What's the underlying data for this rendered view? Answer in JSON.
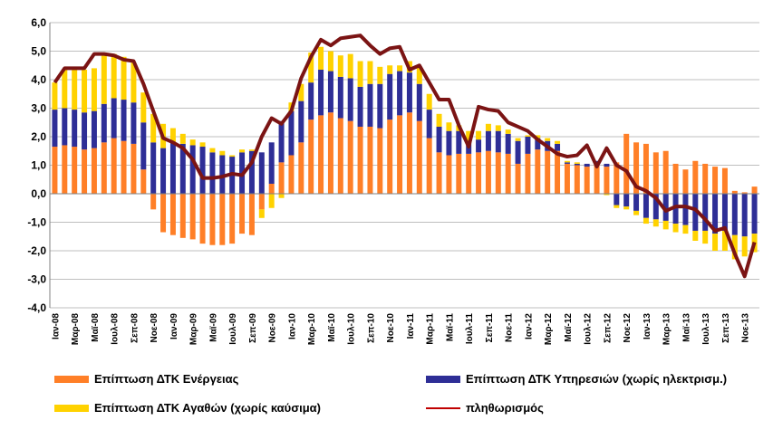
{
  "chart_data": {
    "type": "bar",
    "stacked": true,
    "ylim": [
      -4,
      6
    ],
    "yticks": [
      "6,0",
      "5,0",
      "4,0",
      "3,0",
      "2,0",
      "1,0",
      "0,0",
      "-1,0",
      "-2,0",
      "-3,0",
      "-4,0"
    ],
    "grid": true,
    "legend_position": "bottom",
    "x_labels": [
      "Ιαν-08",
      "Μαρ-08",
      "Μαϊ-08",
      "Ιουλ-08",
      "Σεπ-08",
      "Νοε-08",
      "Ιαν-09",
      "Μαρ-09",
      "Μαϊ-09",
      "Ιουλ-09",
      "Σεπ-09",
      "Νοε-09",
      "Ιαν-10",
      "Μαρ-10",
      "Μαϊ-10",
      "Ιουλ-10",
      "Σεπ-10",
      "Νοε-10",
      "Ιαν-11",
      "Μαρ-11",
      "Μαϊ-11",
      "Ιουλ-11",
      "Σεπ-11",
      "Νοε-11",
      "Ιαν-12",
      "Μαρ-12",
      "Μαϊ-12",
      "Ιουλ-12",
      "Σεπ-12",
      "Νοε-12",
      "Ιαν-13",
      "Μαρ-13",
      "Μαϊ-13",
      "Ιουλ-13",
      "Σεπ-13",
      "Νοε-13"
    ],
    "series": [
      {
        "name": "Επίπτωση ΔΤΚ Ενέργειας",
        "color": "#FF7F27",
        "kind": "bar",
        "values": [
          1.65,
          1.7,
          1.65,
          1.55,
          1.6,
          1.8,
          1.95,
          1.85,
          1.75,
          0.85,
          -0.55,
          -1.35,
          -1.45,
          -1.55,
          -1.6,
          -1.75,
          -1.8,
          -1.8,
          -1.75,
          -1.4,
          -1.45,
          -0.55,
          0.35,
          1.1,
          1.35,
          1.8,
          2.6,
          2.75,
          2.85,
          2.65,
          2.55,
          2.35,
          2.35,
          2.3,
          2.6,
          2.75,
          2.85,
          2.55,
          1.95,
          1.45,
          1.35,
          1.4,
          1.4,
          1.45,
          1.5,
          1.45,
          1.4,
          1.05,
          1.4,
          1.55,
          1.5,
          1.5,
          1.05,
          1.0,
          0.95,
          1.05,
          0.95,
          1.1,
          2.1,
          1.8,
          1.75,
          1.45,
          1.5,
          1.05,
          0.85,
          1.15,
          1.05,
          0.95,
          0.9,
          0.1,
          0.05,
          0.25
        ]
      },
      {
        "name": "Επίπτωση ΔΤΚ Υπηρεσιών (χωρίς ηλεκτρισμ.)",
        "color": "#2E2E96",
        "kind": "bar",
        "values": [
          1.3,
          1.3,
          1.3,
          1.3,
          1.3,
          1.35,
          1.4,
          1.45,
          1.45,
          1.65,
          1.8,
          1.6,
          1.8,
          1.75,
          1.7,
          1.65,
          1.45,
          1.35,
          1.3,
          1.45,
          1.5,
          1.45,
          1.45,
          1.45,
          1.55,
          1.45,
          1.3,
          1.6,
          1.45,
          1.45,
          1.5,
          1.4,
          1.5,
          1.55,
          1.6,
          1.55,
          1.4,
          1.3,
          1.0,
          0.9,
          0.85,
          0.8,
          0.45,
          0.45,
          0.7,
          0.75,
          0.7,
          0.8,
          0.6,
          0.4,
          0.35,
          0.25,
          0.05,
          0.05,
          0.1,
          0.1,
          0.1,
          -0.4,
          -0.45,
          -0.6,
          -0.85,
          -0.9,
          -0.95,
          -1.05,
          -1.1,
          -1.3,
          -1.3,
          -1.4,
          -1.3,
          -1.45,
          -1.5,
          -1.4
        ]
      },
      {
        "name": "Επίπτωση ΔΤΚ Αγαθών (χωρίς καύσιμα)",
        "color": "#FFD200",
        "kind": "bar",
        "values": [
          0.95,
          1.35,
          1.4,
          1.5,
          1.5,
          1.75,
          1.55,
          1.5,
          1.4,
          1.05,
          1.0,
          0.85,
          0.5,
          0.35,
          0.2,
          0.15,
          0.15,
          0.15,
          0.05,
          0.1,
          0.05,
          -0.3,
          -0.5,
          -0.15,
          0.3,
          0.6,
          1.05,
          0.8,
          0.7,
          0.75,
          0.85,
          0.9,
          0.8,
          0.6,
          0.3,
          0.2,
          0.4,
          0.6,
          0.55,
          0.45,
          0.3,
          0.2,
          0.35,
          0.3,
          0.25,
          0.2,
          0.15,
          0.1,
          0.05,
          0.1,
          0.1,
          0.1,
          0.05,
          0.05,
          0.0,
          0.0,
          -0.05,
          -0.1,
          -0.1,
          -0.15,
          -0.2,
          -0.25,
          -0.3,
          -0.3,
          -0.3,
          -0.35,
          -0.45,
          -0.6,
          -0.7,
          -0.85,
          -0.7,
          -0.65
        ]
      },
      {
        "name": "πληθωρισμός",
        "color": "#7B1414",
        "kind": "line",
        "values": [
          3.9,
          4.4,
          4.4,
          4.4,
          4.9,
          4.9,
          4.85,
          4.7,
          4.65,
          3.85,
          2.9,
          1.95,
          1.8,
          1.6,
          1.2,
          0.55,
          0.55,
          0.6,
          0.7,
          0.65,
          1.1,
          2.0,
          2.65,
          2.45,
          2.9,
          4.05,
          4.8,
          5.4,
          5.2,
          5.45,
          5.5,
          5.55,
          5.2,
          4.9,
          5.1,
          5.15,
          4.35,
          4.5,
          3.9,
          3.3,
          3.3,
          2.4,
          1.65,
          3.05,
          2.95,
          2.9,
          2.5,
          2.35,
          2.2,
          1.9,
          1.65,
          1.4,
          1.3,
          1.35,
          1.7,
          0.95,
          1.6,
          1.0,
          0.8,
          0.25,
          0.1,
          -0.15,
          -0.6,
          -0.45,
          -0.45,
          -0.55,
          -0.9,
          -1.3,
          -1.2,
          -2.1,
          -2.9,
          -1.7
        ]
      }
    ]
  },
  "legend": {
    "energy": "Επίπτωση ΔΤΚ Ενέργειας",
    "services": "Επίπτωση ΔΤΚ Υπηρεσιών (χωρίς ηλεκτρισμ.)",
    "goods": "Επίπτωση ΔΤΚ Αγαθών (χωρίς καύσιμα)",
    "inflation": "πληθωρισμός"
  }
}
